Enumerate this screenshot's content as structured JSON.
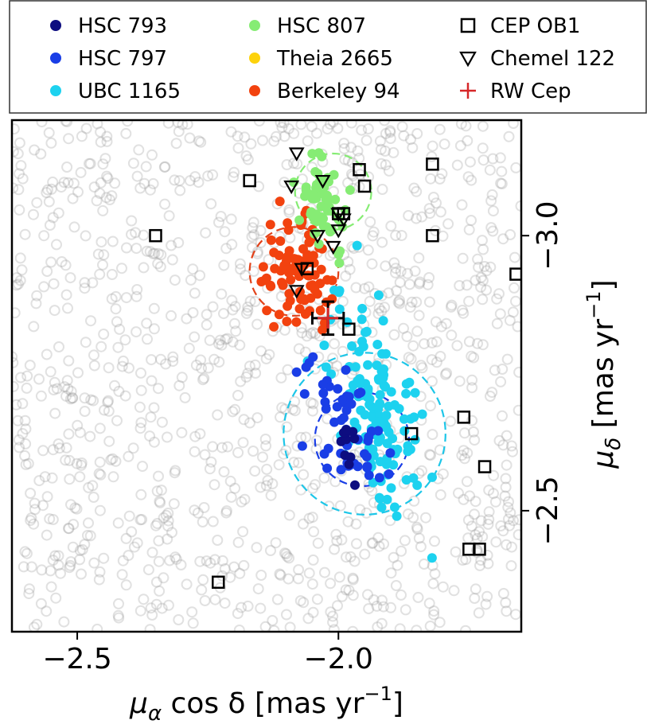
{
  "chart_data": {
    "type": "scatter",
    "x_axis": {
      "label_main": "μ",
      "label_sub": "α",
      "label_rest": " cos δ [mas yr",
      "label_exp": "−1",
      "label_close": "]",
      "range": [
        -2.625,
        -1.65
      ],
      "ticks": [
        {
          "value": -2.5,
          "label": "−2.5"
        },
        {
          "value": -2.0,
          "label": "−2.0"
        }
      ]
    },
    "y_axis": {
      "label_main": "μ",
      "label_sub": "δ",
      "label_rest": " [mas yr",
      "label_exp": "−1",
      "label_close": "]",
      "range": [
        -3.21,
        -2.28
      ],
      "inverted": true,
      "position": "right",
      "ticks": [
        {
          "value": -2.5,
          "label": "−2.5"
        },
        {
          "value": -3.0,
          "label": "−3.0"
        }
      ]
    },
    "grid": false,
    "legend": {
      "placement": "top",
      "columns": 3,
      "entries": [
        {
          "label": "HSC 793",
          "marker": "dot",
          "color": "#0d0d80"
        },
        {
          "label": "HSC 797",
          "marker": "dot",
          "color": "#1a3ee6"
        },
        {
          "label": "UBC 1165",
          "marker": "dot",
          "color": "#1dd2ef"
        },
        {
          "label": "HSC 807",
          "marker": "dot",
          "color": "#86ec74"
        },
        {
          "label": "Theia 2665",
          "marker": "dot",
          "color": "#fdd20c"
        },
        {
          "label": "Berkeley 94",
          "marker": "dot",
          "color": "#f2420f"
        },
        {
          "label": "CEP OB1",
          "marker": "square",
          "color": "#000000"
        },
        {
          "label": "Chemel 122",
          "marker": "triangle-down",
          "color": "#000000"
        },
        {
          "label": "RW Cep",
          "marker": "plus",
          "color": "#d62728"
        }
      ]
    },
    "background_field": {
      "color": "#9a9a9a",
      "marker": "open-circle",
      "count": 1100,
      "alpha": 0.3
    },
    "circles": [
      {
        "series": "UBC 1165",
        "center": [
          -1.95,
          -2.64
        ],
        "radius_x": 0.155,
        "radius_y": 0.19,
        "color": "#1dc6e8"
      },
      {
        "series": "HSC 797",
        "center": [
          -1.955,
          -2.63
        ],
        "radius_x": 0.09,
        "radius_y": 0.12,
        "color": "#1a3ee6"
      },
      {
        "series": "Berkeley 94",
        "center": [
          -2.085,
          -2.935
        ],
        "radius_x": 0.085,
        "radius_y": 0.105,
        "color": "#e2421a"
      },
      {
        "series": "HSC 807",
        "center": [
          -2.01,
          -3.08
        ],
        "radius_x": 0.073,
        "radius_y": 0.09,
        "color": "#86ec74"
      }
    ],
    "clusters": [
      {
        "name": "UBC 1165",
        "color": "#1dd2ef",
        "center": [
          -1.93,
          -2.69
        ],
        "spread": [
          0.045,
          0.1
        ],
        "tilt": 0.6,
        "count": 140
      },
      {
        "name": "HSC 797",
        "color": "#1a3ee6",
        "center": [
          -1.985,
          -2.645
        ],
        "spread": [
          0.035,
          0.06
        ],
        "tilt": 0.4,
        "count": 55
      },
      {
        "name": "HSC 793",
        "color": "#0d0d80",
        "center": [
          -1.985,
          -2.62
        ],
        "spread": [
          0.015,
          0.03
        ],
        "tilt": 0.3,
        "count": 12
      },
      {
        "name": "Berkeley 94",
        "color": "#f2420f",
        "center": [
          -2.085,
          -2.94
        ],
        "spread": [
          0.03,
          0.055
        ],
        "tilt": 0.0,
        "count": 90
      },
      {
        "name": "HSC 807",
        "color": "#86ec74",
        "center": [
          -2.03,
          -3.07
        ],
        "spread": [
          0.025,
          0.05
        ],
        "tilt": 0.5,
        "count": 55
      }
    ],
    "cep_ob1": [
      [
        -2.23,
        -2.37
      ],
      [
        -1.75,
        -2.43
      ],
      [
        -1.73,
        -2.43
      ],
      [
        -1.72,
        -2.58
      ],
      [
        -1.86,
        -2.64
      ],
      [
        -1.76,
        -2.67
      ],
      [
        -1.98,
        -2.83
      ],
      [
        -2.06,
        -2.94
      ],
      [
        -1.66,
        -2.93
      ],
      [
        -2.35,
        -3.0
      ],
      [
        -1.82,
        -3.0
      ],
      [
        -2.0,
        -3.04
      ],
      [
        -1.99,
        -3.04
      ],
      [
        -1.95,
        -3.09
      ],
      [
        -2.17,
        -3.1
      ],
      [
        -1.96,
        -3.12
      ],
      [
        -1.82,
        -3.13
      ]
    ],
    "chemel_122": [
      [
        -2.08,
        -2.9
      ],
      [
        -2.07,
        -2.94
      ],
      [
        -2.01,
        -2.98
      ],
      [
        -2.04,
        -3.0
      ],
      [
        -2.0,
        -3.01
      ],
      [
        -1.99,
        -3.03
      ],
      [
        -2.0,
        -3.04
      ],
      [
        -2.09,
        -3.09
      ],
      [
        -2.03,
        -3.1
      ],
      [
        -2.08,
        -3.15
      ]
    ],
    "rw_cep": {
      "x": -2.02,
      "y": -2.85,
      "xerr": 0.03,
      "yerr": 0.03,
      "color": "#d62728"
    }
  }
}
